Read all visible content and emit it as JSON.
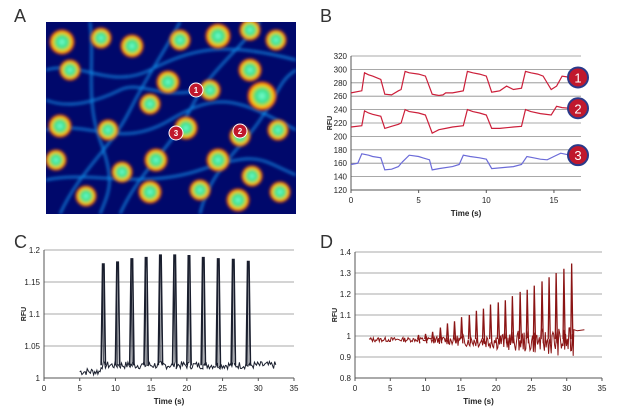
{
  "panels": {
    "A": "A",
    "B": "B",
    "C": "C",
    "D": "D"
  },
  "image_markers": [
    "1",
    "2",
    "3"
  ],
  "chart_data": [
    {
      "id": "B",
      "type": "line",
      "xlabel": "Time (s)",
      "ylabel": "RFU",
      "xlim": [
        0,
        17
      ],
      "ylim": [
        120,
        320
      ],
      "xticks": [
        0,
        5,
        10,
        15
      ],
      "yticks": [
        120,
        140,
        160,
        180,
        200,
        220,
        240,
        260,
        280,
        300,
        320
      ],
      "grid": "horizontal",
      "colors": [
        "#cc1f3a",
        "#cc1f3a",
        "#6b6bd8"
      ],
      "series": [
        {
          "name": "1",
          "x": [
            0,
            0.8,
            1.0,
            1.3,
            1.6,
            2.2,
            2.5,
            3.0,
            3.5,
            3.7,
            4.0,
            4.3,
            5.0,
            5.5,
            6.0,
            6.5,
            6.8,
            7.0,
            7.5,
            8.3,
            8.6,
            9.0,
            9.5,
            10.0,
            10.4,
            10.7,
            11.0,
            11.5,
            12.0,
            12.6,
            12.9,
            13.3,
            13.8,
            14.2,
            14.8,
            15.2,
            15.6,
            16.2
          ],
          "y": [
            265,
            268,
            295,
            292,
            290,
            285,
            263,
            262,
            268,
            270,
            297,
            295,
            293,
            290,
            263,
            261,
            262,
            265,
            265,
            268,
            297,
            295,
            293,
            290,
            266,
            267,
            268,
            275,
            270,
            272,
            297,
            295,
            293,
            290,
            270,
            275,
            290,
            288
          ]
        },
        {
          "name": "2",
          "x": [
            0,
            0.8,
            1.0,
            1.3,
            1.6,
            2.2,
            2.5,
            3.0,
            3.5,
            3.7,
            4.0,
            4.3,
            5.0,
            5.5,
            6.0,
            6.5,
            7.0,
            7.5,
            8.3,
            8.6,
            9.0,
            9.5,
            10.0,
            10.4,
            11.0,
            12.0,
            12.6,
            12.9,
            13.3,
            14.0,
            14.8,
            15.2,
            15.6,
            16.2
          ],
          "y": [
            214,
            216,
            238,
            235,
            233,
            230,
            212,
            215,
            218,
            220,
            240,
            237,
            235,
            232,
            205,
            210,
            212,
            214,
            216,
            240,
            237,
            235,
            232,
            212,
            212,
            214,
            215,
            240,
            237,
            234,
            232,
            245,
            243,
            242
          ]
        },
        {
          "name": "3",
          "x": [
            0,
            0.5,
            0.8,
            1.3,
            1.6,
            2.2,
            2.5,
            3.0,
            3.5,
            3.8,
            4.3,
            5.0,
            5.3,
            5.8,
            6.0,
            6.5,
            7.5,
            8.0,
            8.3,
            8.8,
            9.5,
            10.0,
            10.4,
            11.0,
            12.0,
            12.6,
            13.0,
            13.5,
            14.0,
            14.5,
            15.0,
            15.5,
            16.2
          ],
          "y": [
            158,
            160,
            174,
            172,
            170,
            168,
            150,
            151,
            155,
            162,
            172,
            170,
            168,
            165,
            150,
            152,
            155,
            158,
            172,
            170,
            168,
            166,
            152,
            153,
            155,
            158,
            170,
            168,
            166,
            165,
            170,
            175,
            172
          ]
        }
      ]
    },
    {
      "id": "C",
      "type": "line",
      "xlabel": "Time (s)",
      "ylabel": "RFU",
      "xlim": [
        0,
        35
      ],
      "ylim": [
        1,
        1.2
      ],
      "xticks": [
        0,
        5,
        10,
        15,
        20,
        25,
        30,
        35
      ],
      "yticks": [
        1,
        1.05,
        1.1,
        1.15,
        1.2
      ],
      "ytick_labels": [
        "1",
        "1.05",
        "1.1",
        "1.15",
        "1.2"
      ],
      "grid": "horizontal",
      "colors": [
        "#1a1f2e"
      ],
      "baseline": 1.02,
      "baseline_range": [
        5,
        32.5
      ],
      "spikes": [
        {
          "x": 8.3,
          "y": 1.178
        },
        {
          "x": 10.3,
          "y": 1.181
        },
        {
          "x": 12.3,
          "y": 1.186
        },
        {
          "x": 14.3,
          "y": 1.188
        },
        {
          "x": 16.3,
          "y": 1.192
        },
        {
          "x": 18.3,
          "y": 1.192
        },
        {
          "x": 20.3,
          "y": 1.191
        },
        {
          "x": 22.3,
          "y": 1.188
        },
        {
          "x": 24.4,
          "y": 1.186
        },
        {
          "x": 26.5,
          "y": 1.185
        },
        {
          "x": 28.6,
          "y": 1.182
        }
      ]
    },
    {
      "id": "D",
      "type": "line",
      "xlabel": "Time (s)",
      "ylabel": "RFU",
      "xlim": [
        0,
        35
      ],
      "ylim": [
        0.8,
        1.4
      ],
      "xticks": [
        0,
        5,
        10,
        15,
        20,
        25,
        30,
        35
      ],
      "yticks": [
        0.8,
        0.9,
        1,
        1.1,
        1.2,
        1.3,
        1.4
      ],
      "ytick_labels": [
        "0.8",
        "0.9",
        "1",
        "1.1",
        "1.2",
        "1.3",
        "1.4"
      ],
      "grid": "horizontal",
      "colors": [
        "#8b1414"
      ],
      "baseline": 0.985,
      "baseline_range": [
        2,
        32.5
      ],
      "spikes": [
        {
          "x": 9.0,
          "y": 1.005
        },
        {
          "x": 10.0,
          "y": 1.01
        },
        {
          "x": 11.0,
          "y": 1.02
        },
        {
          "x": 12.1,
          "y": 1.04
        },
        {
          "x": 13.1,
          "y": 1.06
        },
        {
          "x": 14.1,
          "y": 1.07
        },
        {
          "x": 15.1,
          "y": 1.09
        },
        {
          "x": 16.2,
          "y": 1.1
        },
        {
          "x": 17.2,
          "y": 1.12
        },
        {
          "x": 18.2,
          "y": 1.13
        },
        {
          "x": 19.2,
          "y": 1.15
        },
        {
          "x": 20.3,
          "y": 1.16
        },
        {
          "x": 21.3,
          "y": 1.17
        },
        {
          "x": 22.3,
          "y": 1.19
        },
        {
          "x": 23.4,
          "y": 1.21
        },
        {
          "x": 24.4,
          "y": 1.22
        },
        {
          "x": 25.4,
          "y": 1.24
        },
        {
          "x": 26.5,
          "y": 1.26
        },
        {
          "x": 27.5,
          "y": 1.28
        },
        {
          "x": 28.5,
          "y": 1.3
        },
        {
          "x": 29.6,
          "y": 1.32
        },
        {
          "x": 30.7,
          "y": 1.345
        }
      ],
      "tail": {
        "x": [
          31.0,
          31.5,
          32.5
        ],
        "y": [
          1.03,
          1.025,
          1.03
        ]
      }
    }
  ]
}
